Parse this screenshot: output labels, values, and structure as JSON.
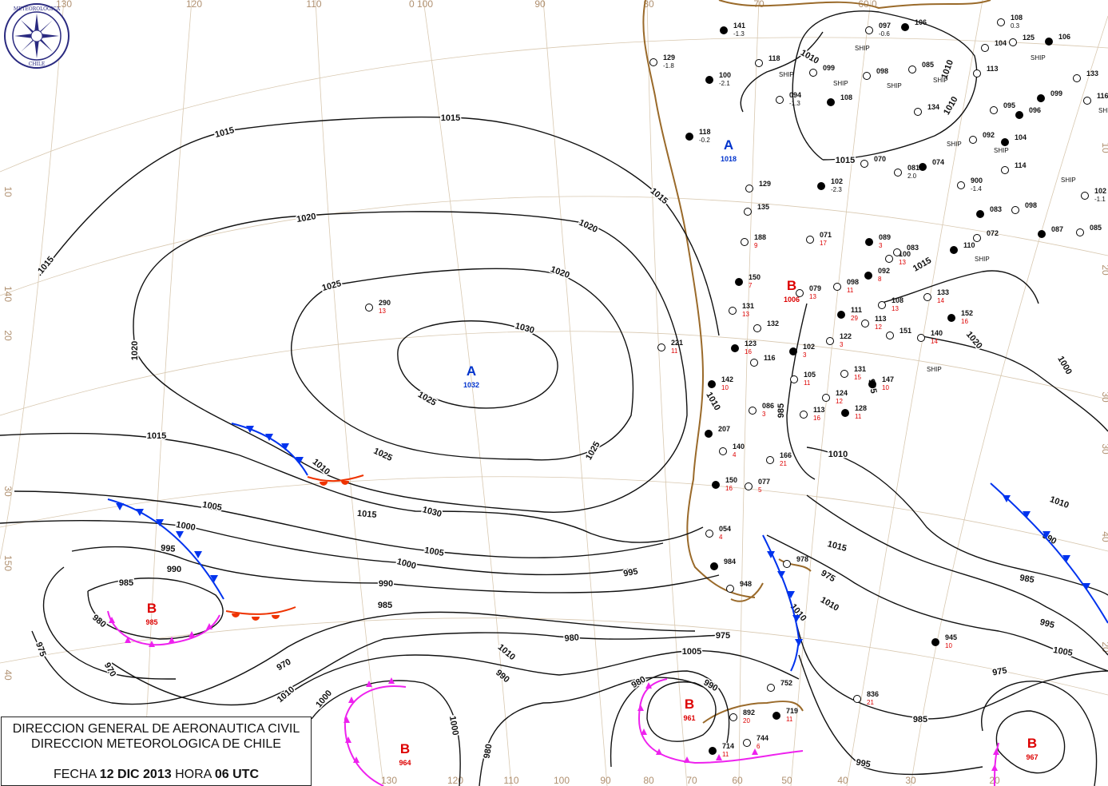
{
  "title_box": {
    "line1": "DIRECCION GENERAL DE AERONAUTICA CIVIL",
    "line2": "DIRECCION METEOROLOGICA DE CHILE",
    "date_prefix": "FECHA",
    "date": "12 DIC 2013",
    "hour_prefix": "HORA",
    "hour": "06 UTC"
  },
  "logo": {
    "text": "DIRECCION METEOROLOGICA CHILE"
  },
  "colors": {
    "isobar": "#111111",
    "high": "#0033cc",
    "low": "#dd0000",
    "cold_front": "#0033ee",
    "warm_front": "#ee3300",
    "occluded_front": "#ee22ee",
    "coast": "#9a6a2a",
    "grid": "#d8c8b0"
  },
  "grid_labels": {
    "top": [
      "130",
      "120",
      "110",
      "0 100",
      "90",
      "80",
      "70",
      "60 0"
    ],
    "bottom": [
      "130",
      "120",
      "110",
      "100",
      "90",
      "80",
      "70",
      "60",
      "50",
      "40",
      "30",
      "20"
    ],
    "left": [
      "10",
      "140",
      "20",
      "30",
      "150",
      "40"
    ],
    "right": [
      "10",
      "20",
      "30",
      "30",
      "40",
      "20"
    ]
  },
  "pressure_centers": [
    {
      "type": "A",
      "value": "1032"
    },
    {
      "type": "A",
      "value": "1018"
    },
    {
      "type": "B",
      "value": "1006"
    },
    {
      "type": "B",
      "value": "985"
    },
    {
      "type": "B",
      "value": "964"
    },
    {
      "type": "B",
      "value": "961"
    },
    {
      "type": "B",
      "value": "967"
    }
  ],
  "isobar_labels": [
    "1015",
    "1015",
    "1015",
    "1015",
    "1020",
    "1020",
    "1020",
    "1020",
    "1025",
    "1025",
    "1025",
    "1025",
    "1030",
    "1030",
    "1015",
    "1015",
    "1010",
    "1010",
    "1005",
    "1005",
    "1000",
    "1000",
    "995",
    "995",
    "990",
    "990",
    "985",
    "985",
    "980",
    "980",
    "975",
    "975",
    "970",
    "970",
    "1010",
    "1010",
    "1005",
    "1000",
    "995",
    "990",
    "985",
    "980",
    "975",
    "1010",
    "1005",
    "1000",
    "995",
    "990",
    "985",
    "980",
    "975",
    "1010",
    "1010",
    "1010",
    "1010",
    "1010",
    "1015",
    "1015",
    "1015",
    "1020",
    "1010",
    "1000",
    "995",
    "990",
    "985"
  ],
  "stations": [
    {
      "id": "141",
      "val": "-1.3"
    },
    {
      "id": "129",
      "val": "-1.8"
    },
    {
      "id": "118",
      "val": ""
    },
    {
      "id": "100",
      "val": "-2.1"
    },
    {
      "id": "094",
      "val": "-1.3"
    },
    {
      "id": "097",
      "val": "-0.6"
    },
    {
      "id": "106",
      "val": ""
    },
    {
      "id": "099",
      "val": ""
    },
    {
      "id": "098",
      "val": ""
    },
    {
      "id": "108",
      "val": ""
    },
    {
      "id": "085",
      "val": ""
    },
    {
      "id": "134",
      "val": ""
    },
    {
      "id": "118",
      "val": "-0.2"
    },
    {
      "id": "135",
      "val": ""
    },
    {
      "id": "129",
      "val": ""
    },
    {
      "id": "102",
      "val": "-2.3"
    },
    {
      "id": "188",
      "val": "9"
    },
    {
      "id": "071",
      "val": "17"
    },
    {
      "id": "150",
      "val": "7"
    },
    {
      "id": "131",
      "val": "13"
    },
    {
      "id": "132",
      "val": ""
    },
    {
      "id": "123",
      "val": "16"
    },
    {
      "id": "116",
      "val": ""
    },
    {
      "id": "105",
      "val": "11"
    },
    {
      "id": "142",
      "val": "10"
    },
    {
      "id": "086",
      "val": "3"
    },
    {
      "id": "113",
      "val": "16"
    },
    {
      "id": "128",
      "val": "11"
    },
    {
      "id": "124",
      "val": "12"
    },
    {
      "id": "131",
      "val": "15"
    },
    {
      "id": "147",
      "val": "10"
    },
    {
      "id": "151",
      "val": ""
    },
    {
      "id": "140",
      "val": "14"
    },
    {
      "id": "152",
      "val": "16"
    },
    {
      "id": "133",
      "val": "14"
    },
    {
      "id": "108",
      "val": "13"
    },
    {
      "id": "089",
      "val": "3"
    },
    {
      "id": "100",
      "val": "13"
    },
    {
      "id": "083",
      "val": ""
    },
    {
      "id": "110",
      "val": ""
    },
    {
      "id": "072",
      "val": ""
    },
    {
      "id": "102",
      "val": "-1.1"
    },
    {
      "id": "087",
      "val": ""
    },
    {
      "id": "085",
      "val": ""
    },
    {
      "id": "098",
      "val": ""
    },
    {
      "id": "083",
      "val": ""
    },
    {
      "id": "900",
      "val": "-1.4"
    },
    {
      "id": "114",
      "val": ""
    },
    {
      "id": "104",
      "val": ""
    },
    {
      "id": "092",
      "val": ""
    },
    {
      "id": "095",
      "val": ""
    },
    {
      "id": "096",
      "val": ""
    },
    {
      "id": "133",
      "val": ""
    },
    {
      "id": "116",
      "val": ""
    },
    {
      "id": "099",
      "val": ""
    },
    {
      "id": "125",
      "val": ""
    },
    {
      "id": "108",
      "val": "0.3"
    },
    {
      "id": "106",
      "val": ""
    },
    {
      "id": "104",
      "val": ""
    },
    {
      "id": "113",
      "val": ""
    },
    {
      "id": "207",
      "val": ""
    },
    {
      "id": "140",
      "val": "4"
    },
    {
      "id": "166",
      "val": "21"
    },
    {
      "id": "150",
      "val": "16"
    },
    {
      "id": "077",
      "val": "5"
    },
    {
      "id": "054",
      "val": "4"
    },
    {
      "id": "984",
      "val": ""
    },
    {
      "id": "948",
      "val": ""
    },
    {
      "id": "978",
      "val": ""
    },
    {
      "id": "945",
      "val": "10"
    },
    {
      "id": "836",
      "val": "21"
    },
    {
      "id": "752",
      "val": ""
    },
    {
      "id": "719",
      "val": "11"
    },
    {
      "id": "892",
      "val": "20"
    },
    {
      "id": "744",
      "val": "6"
    },
    {
      "id": "714",
      "val": "11"
    },
    {
      "id": "290",
      "val": "13"
    },
    {
      "id": "221",
      "val": "11"
    },
    {
      "id": "111",
      "val": "29"
    },
    {
      "id": "113",
      "val": "12"
    },
    {
      "id": "122",
      "val": "3"
    },
    {
      "id": "102",
      "val": "3"
    },
    {
      "id": "079",
      "val": "13"
    },
    {
      "id": "098",
      "val": "11"
    },
    {
      "id": "092",
      "val": "8"
    },
    {
      "id": "070",
      "val": ""
    },
    {
      "id": "081",
      "val": "2.0"
    },
    {
      "id": "074",
      "val": ""
    }
  ],
  "ship_label": "SHIP"
}
